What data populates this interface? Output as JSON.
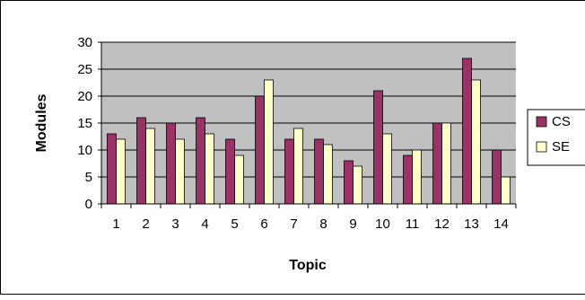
{
  "chart_data": {
    "type": "bar",
    "title": "",
    "xlabel": "Topic",
    "ylabel": "Modules",
    "categories": [
      "1",
      "2",
      "3",
      "4",
      "5",
      "6",
      "7",
      "8",
      "9",
      "10",
      "11",
      "12",
      "13",
      "14"
    ],
    "series": [
      {
        "name": "CS",
        "values": [
          13,
          16,
          15,
          16,
          12,
          20,
          12,
          12,
          8,
          21,
          9,
          15,
          27,
          10
        ],
        "color": "#993366"
      },
      {
        "name": "SE",
        "values": [
          12,
          14,
          12,
          13,
          9,
          23,
          14,
          11,
          7,
          13,
          10,
          15,
          23,
          5
        ],
        "color": "#ffffcc"
      }
    ],
    "ylim": [
      0,
      30
    ],
    "yticks": [
      "0",
      "5",
      "10",
      "15",
      "20",
      "25",
      "30"
    ],
    "grid": true,
    "legend": "right",
    "plot_background": "#c0c0c0"
  }
}
